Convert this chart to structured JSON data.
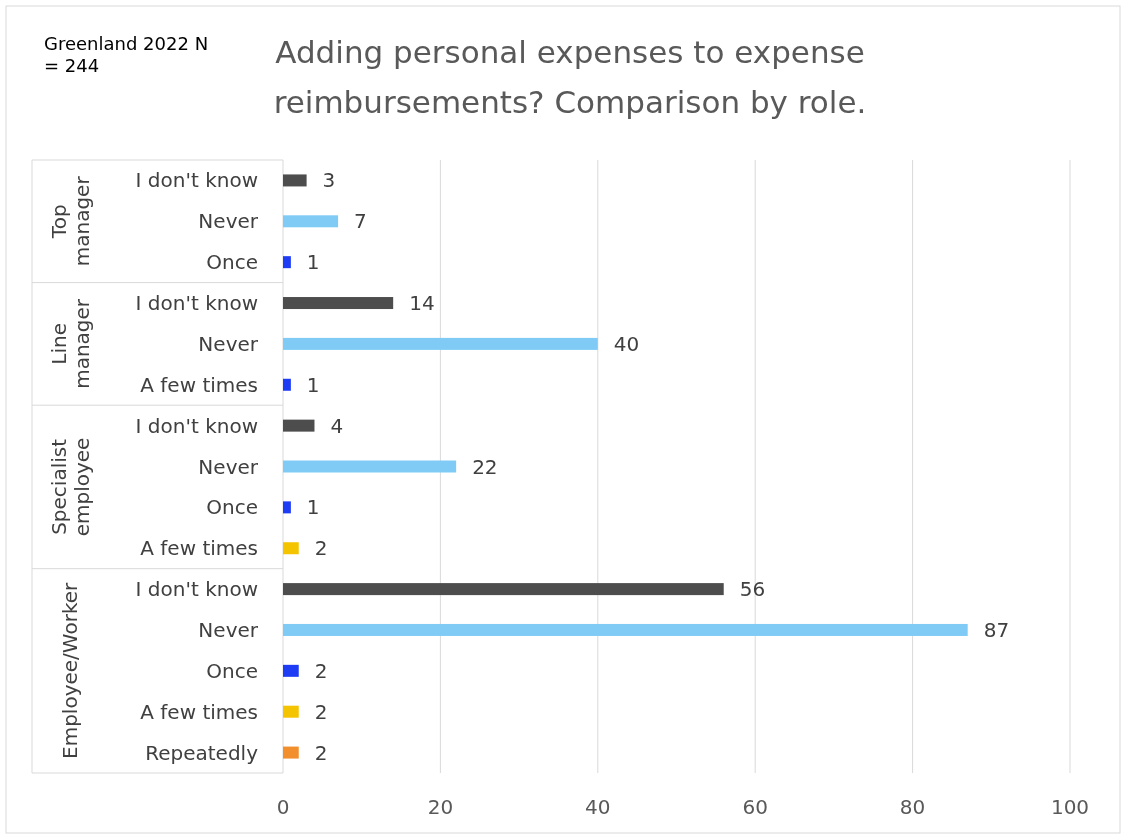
{
  "chart_data": {
    "type": "bar",
    "orientation": "horizontal",
    "title": "Adding personal expenses to expense reimbursements? Comparison by role.",
    "categories": [
      "I don't know",
      "Never",
      "Once",
      "I don't know",
      "Never",
      "A few times",
      "I don't know",
      "Never",
      "Once",
      "A few times",
      "I don't know",
      "Never",
      "Once",
      "A few times",
      "Repeatedly"
    ],
    "values": [
      3,
      7,
      1,
      14,
      40,
      1,
      4,
      22,
      1,
      2,
      56,
      87,
      2,
      2,
      2
    ],
    "colors": [
      "#4d4d4d",
      "#7fcbf5",
      "#1f3cf5",
      "#4d4d4d",
      "#7fcbf5",
      "#1f3cf5",
      "#4d4d4d",
      "#7fcbf5",
      "#1f3cf5",
      "#f5c400",
      "#4d4d4d",
      "#7fcbf5",
      "#1f3cf5",
      "#f5c400",
      "#f28e2b"
    ],
    "data_labels": true,
    "xlim": [
      0,
      100
    ],
    "xticks": [
      0,
      20,
      40,
      60,
      80,
      100
    ],
    "grid": "x",
    "annotations": [
      "Greenland 2022 N = 244",
      "Top manager",
      "Line manager",
      "Specialist employee",
      "Employee/Worker"
    ]
  }
}
